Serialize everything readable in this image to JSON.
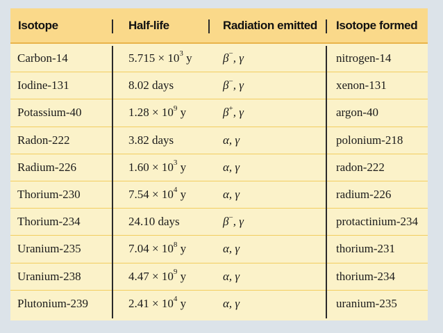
{
  "table": {
    "headers": [
      "Isotope",
      "Half-life",
      "Radiation emitted",
      "Isotope formed"
    ],
    "rows": [
      {
        "isotope": "Carbon-14",
        "half_life": {
          "base": "5.715 × 10",
          "exp": "3",
          "unit": " y"
        },
        "radiation": {
          "particle": "β",
          "charge": "−",
          "rest": ", γ"
        },
        "formed": "nitrogen-14"
      },
      {
        "isotope": "Iodine-131",
        "half_life": {
          "base": "8.02 days",
          "exp": "",
          "unit": ""
        },
        "radiation": {
          "particle": "β",
          "charge": "−",
          "rest": ", γ"
        },
        "formed": "xenon-131"
      },
      {
        "isotope": "Potassium-40",
        "half_life": {
          "base": "1.28 × 10",
          "exp": "9",
          "unit": " y"
        },
        "radiation": {
          "particle": "β",
          "charge": "+",
          "rest": ", γ"
        },
        "formed": "argon-40"
      },
      {
        "isotope": "Radon-222",
        "half_life": {
          "base": "3.82 days",
          "exp": "",
          "unit": ""
        },
        "radiation": {
          "particle": "α, γ",
          "charge": "",
          "rest": ""
        },
        "formed": "polonium-218"
      },
      {
        "isotope": "Radium-226",
        "half_life": {
          "base": "1.60 × 10",
          "exp": "3",
          "unit": " y"
        },
        "radiation": {
          "particle": "α, γ",
          "charge": "",
          "rest": ""
        },
        "formed": "radon-222"
      },
      {
        "isotope": "Thorium-230",
        "half_life": {
          "base": "7.54 × 10",
          "exp": "4",
          "unit": " y"
        },
        "radiation": {
          "particle": "α, γ",
          "charge": "",
          "rest": ""
        },
        "formed": "radium-226"
      },
      {
        "isotope": "Thorium-234",
        "half_life": {
          "base": "24.10 days",
          "exp": "",
          "unit": ""
        },
        "radiation": {
          "particle": "β",
          "charge": "−",
          "rest": ", γ"
        },
        "formed": "protactinium-234"
      },
      {
        "isotope": "Uranium-235",
        "half_life": {
          "base": "7.04 × 10",
          "exp": "8",
          "unit": " y"
        },
        "radiation": {
          "particle": "α, γ",
          "charge": "",
          "rest": ""
        },
        "formed": "thorium-231"
      },
      {
        "isotope": "Uranium-238",
        "half_life": {
          "base": "4.47 × 10",
          "exp": "9",
          "unit": " y"
        },
        "radiation": {
          "particle": "α, γ",
          "charge": "",
          "rest": ""
        },
        "formed": "thorium-234"
      },
      {
        "isotope": "Plutonium-239",
        "half_life": {
          "base": "2.41 × 10",
          "exp": "4",
          "unit": " y"
        },
        "radiation": {
          "particle": "α, γ",
          "charge": "",
          "rest": ""
        },
        "formed": "uranium-235"
      }
    ]
  },
  "colors": {
    "background": "#dce3e9",
    "table_fill": "#fbf2c9",
    "header_fill": "#fad98a",
    "row_rule": "#f2cd5f"
  }
}
